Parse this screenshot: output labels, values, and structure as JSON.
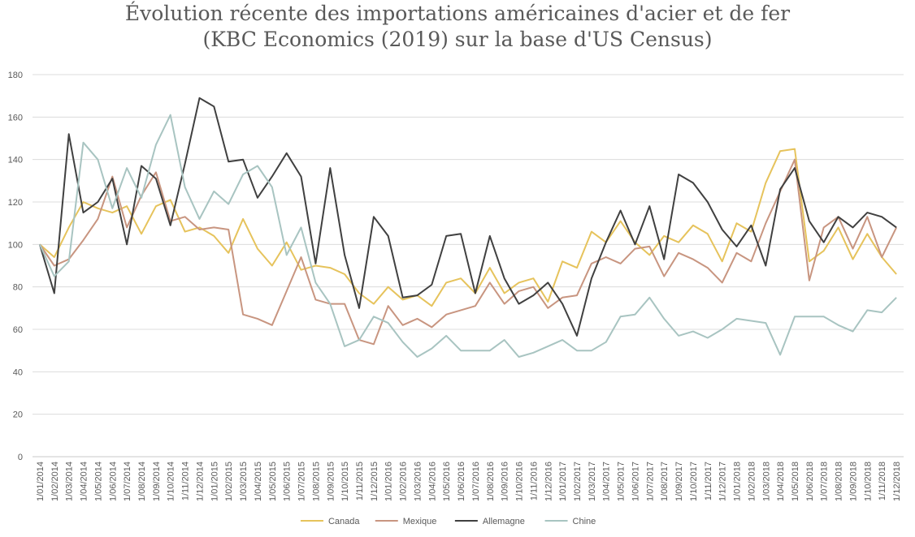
{
  "chart_data": {
    "type": "line",
    "title_lines": [
      "Évolution récente des importations américaines d'acier et de fer",
      "(KBC Economics (2019) sur la base d'US Census)"
    ],
    "xlabel": "",
    "ylabel": "",
    "ylim": [
      0,
      180
    ],
    "yticks": [
      0,
      20,
      40,
      60,
      80,
      100,
      120,
      140,
      160,
      180
    ],
    "grid": true,
    "legend_position": "bottom",
    "x": [
      "1/01/2014",
      "1/02/2014",
      "1/03/2014",
      "1/04/2014",
      "1/05/2014",
      "1/06/2014",
      "1/07/2014",
      "1/08/2014",
      "1/09/2014",
      "1/10/2014",
      "1/11/2014",
      "1/12/2014",
      "1/01/2015",
      "1/02/2015",
      "1/03/2015",
      "1/04/2015",
      "1/05/2015",
      "1/06/2015",
      "1/07/2015",
      "1/08/2015",
      "1/09/2015",
      "1/10/2015",
      "1/11/2015",
      "1/12/2015",
      "1/01/2016",
      "1/02/2016",
      "1/03/2016",
      "1/04/2016",
      "1/05/2016",
      "1/06/2016",
      "1/07/2016",
      "1/08/2016",
      "1/09/2016",
      "1/10/2016",
      "1/11/2016",
      "1/12/2016",
      "1/01/2017",
      "1/02/2017",
      "1/03/2017",
      "1/04/2017",
      "1/05/2017",
      "1/06/2017",
      "1/07/2017",
      "1/08/2017",
      "1/09/2017",
      "1/10/2017",
      "1/11/2017",
      "1/12/2017",
      "1/01/2018",
      "1/02/2018",
      "1/03/2018",
      "1/04/2018",
      "1/05/2018",
      "1/06/2018",
      "1/07/2018",
      "1/08/2018",
      "1/09/2018",
      "1/10/2018",
      "1/11/2018",
      "1/12/2018"
    ],
    "series": [
      {
        "name": "Canada",
        "color": "#e6c35c",
        "values": [
          100,
          94,
          108,
          120,
          117,
          115,
          118,
          105,
          118,
          121,
          106,
          108,
          104,
          96,
          112,
          98,
          90,
          101,
          88,
          90,
          89,
          86,
          77,
          72,
          80,
          74,
          76,
          71,
          82,
          84,
          77,
          89,
          77,
          82,
          84,
          73,
          92,
          89,
          106,
          101,
          111,
          101,
          95,
          104,
          101,
          109,
          105,
          92,
          110,
          106,
          129,
          144,
          145,
          92,
          97,
          108,
          93,
          105,
          94,
          86
        ]
      },
      {
        "name": "Mexique",
        "color": "#c89580",
        "values": [
          100,
          90,
          93,
          102,
          112,
          132,
          108,
          123,
          134,
          111,
          113,
          107,
          108,
          107,
          67,
          65,
          62,
          78,
          94,
          74,
          72,
          72,
          55,
          53,
          71,
          62,
          65,
          61,
          67,
          69,
          71,
          82,
          72,
          78,
          80,
          70,
          75,
          76,
          91,
          94,
          91,
          98,
          99,
          85,
          96,
          93,
          89,
          82,
          96,
          92,
          110,
          125,
          140,
          83,
          108,
          113,
          98,
          113,
          94,
          108
        ]
      },
      {
        "name": "Allemagne",
        "color": "#404040",
        "values": [
          100,
          77,
          152,
          115,
          120,
          131,
          100,
          137,
          131,
          109,
          138,
          169,
          165,
          139,
          140,
          122,
          132,
          143,
          132,
          91,
          136,
          95,
          70,
          113,
          104,
          75,
          76,
          81,
          104,
          105,
          77,
          104,
          84,
          72,
          76,
          82,
          72,
          57,
          84,
          101,
          116,
          100,
          118,
          93,
          133,
          129,
          120,
          107,
          99,
          109,
          90,
          126,
          136,
          111,
          101,
          113,
          108,
          115,
          113,
          108
        ]
      },
      {
        "name": "Chine",
        "color": "#a8c4c1",
        "values": [
          100,
          85,
          92,
          148,
          140,
          117,
          136,
          122,
          147,
          161,
          127,
          112,
          125,
          119,
          133,
          137,
          127,
          95,
          108,
          82,
          72,
          52,
          55,
          66,
          63,
          54,
          47,
          51,
          57,
          50,
          50,
          50,
          55,
          47,
          49,
          52,
          55,
          50,
          50,
          54,
          66,
          67,
          75,
          65,
          57,
          59,
          56,
          60,
          65,
          64,
          63,
          48,
          66,
          66,
          66,
          62,
          59,
          69,
          68,
          75
        ]
      }
    ]
  }
}
